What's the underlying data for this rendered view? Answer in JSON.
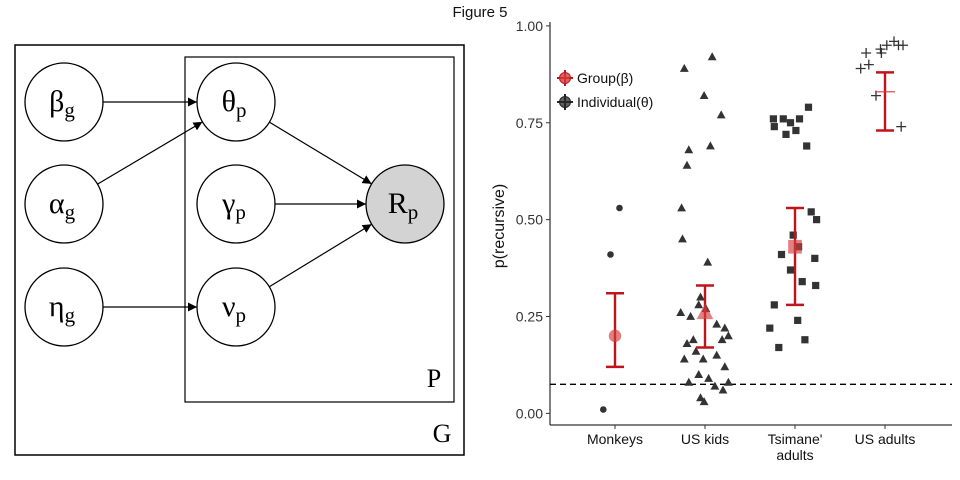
{
  "figure_title": "Figure 5",
  "diagram": {
    "outer_plate_label": "G",
    "inner_plate_label": "P",
    "nodes": [
      {
        "id": "beta",
        "symbol": "β",
        "sub": "g"
      },
      {
        "id": "alpha",
        "symbol": "α",
        "sub": "g"
      },
      {
        "id": "eta",
        "symbol": "η",
        "sub": "g"
      },
      {
        "id": "theta",
        "symbol": "θ",
        "sub": "p"
      },
      {
        "id": "gamma",
        "symbol": "γ",
        "sub": "p"
      },
      {
        "id": "nu",
        "symbol": "ν",
        "sub": "p"
      },
      {
        "id": "R",
        "symbol": "R",
        "sub": "p",
        "observed": true
      }
    ],
    "edges": [
      [
        "beta",
        "theta"
      ],
      [
        "alpha",
        "theta"
      ],
      [
        "eta",
        "nu"
      ],
      [
        "theta",
        "R"
      ],
      [
        "gamma",
        "R"
      ],
      [
        "nu",
        "R"
      ]
    ]
  },
  "chart_data": {
    "type": "scatter",
    "title": "",
    "xlabel": "",
    "ylabel": "p(recursive)",
    "categories": [
      "Monkeys",
      "US kids",
      "Tsimane'\nadults",
      "US adults"
    ],
    "ylim": [
      -0.03,
      1.01
    ],
    "yticks": [
      "0.00",
      "0.25",
      "0.50",
      "0.75",
      "1.00"
    ],
    "reference_line": 0.075,
    "legend_placement": "top-left",
    "legend": [
      {
        "label": "Group(β)",
        "color": "#c0141b"
      },
      {
        "label": "Individual(θ)",
        "color": "#222222"
      }
    ],
    "group_estimates": [
      {
        "category": "Monkeys",
        "mean": 0.2,
        "lower": 0.12,
        "upper": 0.31,
        "marker": "circle"
      },
      {
        "category": "US kids",
        "mean": 0.26,
        "lower": 0.17,
        "upper": 0.33,
        "marker": "triangle"
      },
      {
        "category": "Tsimane'\nadults",
        "mean": 0.43,
        "lower": 0.28,
        "upper": 0.53,
        "marker": "square"
      },
      {
        "category": "US adults",
        "mean": 0.83,
        "lower": 0.73,
        "upper": 0.88,
        "marker": "plus"
      }
    ],
    "individuals": [
      {
        "category": "Monkeys",
        "marker": "circle",
        "points": [
          [
            -0.05,
            0.41
          ],
          [
            0.05,
            0.53
          ],
          [
            -0.13,
            0.01
          ]
        ]
      },
      {
        "category": "US kids",
        "marker": "triangle",
        "points": [
          [
            -0.23,
            0.89
          ],
          [
            0.08,
            0.92
          ],
          [
            -0.01,
            0.82
          ],
          [
            0.18,
            0.77
          ],
          [
            -0.18,
            0.68
          ],
          [
            0.06,
            0.69
          ],
          [
            -0.2,
            0.64
          ],
          [
            -0.26,
            0.53
          ],
          [
            -0.25,
            0.45
          ],
          [
            0.03,
            0.39
          ],
          [
            -0.27,
            0.26
          ],
          [
            -0.05,
            0.3
          ],
          [
            -0.07,
            0.28
          ],
          [
            0.01,
            0.27
          ],
          [
            -0.16,
            0.25
          ],
          [
            0.13,
            0.23
          ],
          [
            0.22,
            0.22
          ],
          [
            -0.13,
            0.19
          ],
          [
            -0.2,
            0.18
          ],
          [
            0.19,
            0.19
          ],
          [
            0.26,
            0.2
          ],
          [
            -0.1,
            0.16
          ],
          [
            0.13,
            0.15
          ],
          [
            -0.23,
            0.14
          ],
          [
            -0.02,
            0.14
          ],
          [
            0.22,
            0.12
          ],
          [
            -0.07,
            0.1
          ],
          [
            0.04,
            0.09
          ],
          [
            0.11,
            0.07
          ],
          [
            0.2,
            0.06
          ],
          [
            0.26,
            0.08
          ],
          [
            -0.18,
            0.08
          ],
          [
            -0.05,
            0.04
          ],
          [
            -0.01,
            0.03
          ]
        ]
      },
      {
        "category": "Tsimane'\nadults",
        "marker": "square",
        "points": [
          [
            -0.24,
            0.76
          ],
          [
            -0.23,
            0.74
          ],
          [
            -0.13,
            0.76
          ],
          [
            -0.05,
            0.75
          ],
          [
            0.05,
            0.76
          ],
          [
            0.15,
            0.79
          ],
          [
            -0.1,
            0.72
          ],
          [
            0.01,
            0.73
          ],
          [
            0.13,
            0.69
          ],
          [
            0.18,
            0.52
          ],
          [
            0.24,
            0.5
          ],
          [
            -0.02,
            0.46
          ],
          [
            0.04,
            0.43
          ],
          [
            -0.15,
            0.41
          ],
          [
            0.22,
            0.4
          ],
          [
            -0.05,
            0.37
          ],
          [
            0.08,
            0.34
          ],
          [
            0.23,
            0.33
          ],
          [
            -0.23,
            0.28
          ],
          [
            0.03,
            0.24
          ],
          [
            -0.28,
            0.22
          ],
          [
            0.11,
            0.19
          ],
          [
            -0.18,
            0.17
          ]
        ]
      },
      {
        "category": "US adults",
        "marker": "plus",
        "points": [
          [
            -0.05,
            0.94
          ],
          [
            0.02,
            0.95
          ],
          [
            0.1,
            0.96
          ],
          [
            0.15,
            0.95
          ],
          [
            0.2,
            0.95
          ],
          [
            -0.21,
            0.93
          ],
          [
            -0.04,
            0.93
          ],
          [
            -0.18,
            0.9
          ],
          [
            -0.27,
            0.89
          ],
          [
            -0.1,
            0.82
          ],
          [
            0.18,
            0.74
          ]
        ]
      }
    ]
  }
}
